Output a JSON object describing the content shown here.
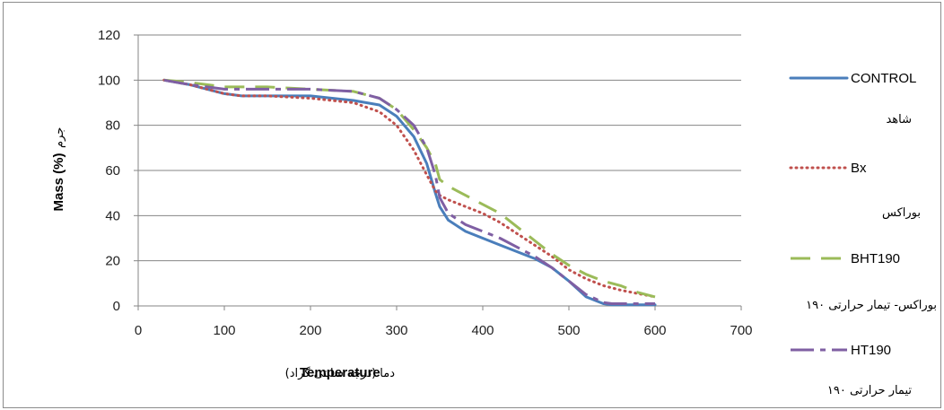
{
  "chart_data": {
    "type": "line",
    "xlabel": "Temperature",
    "xlabel_persian": "دما (درجه سانتی گراد)",
    "ylabel": "Mass (%)",
    "ylabel_persian": "جرم",
    "xlim": [
      0,
      700
    ],
    "ylim": [
      0,
      120
    ],
    "x_ticks": [
      "0",
      "100",
      "200",
      "300",
      "400",
      "500",
      "600",
      "700"
    ],
    "y_ticks": [
      "0",
      "20",
      "40",
      "60",
      "80",
      "100",
      "120"
    ],
    "grid": "horizontal",
    "legend_position": "right",
    "series": [
      {
        "name": "CONTROL",
        "subtitle": "شاهد",
        "color": "#4a7ebb",
        "dash": "solid",
        "x": [
          30,
          60,
          80,
          100,
          120,
          150,
          200,
          250,
          280,
          300,
          320,
          335,
          345,
          350,
          360,
          380,
          400,
          420,
          440,
          460,
          480,
          500,
          520,
          540,
          550,
          600
        ],
        "y": [
          100,
          98,
          96,
          94,
          93,
          93,
          93,
          91,
          89,
          84,
          75,
          63,
          50,
          44,
          38,
          33,
          30,
          27,
          24,
          21,
          17,
          11,
          4,
          1,
          0.5,
          0.5
        ]
      },
      {
        "name": "Bx",
        "subtitle": "بوراکس",
        "color": "#c0504d",
        "dash": "dotted",
        "x": [
          30,
          60,
          80,
          100,
          120,
          150,
          200,
          250,
          280,
          300,
          320,
          335,
          345,
          350,
          360,
          380,
          400,
          420,
          440,
          460,
          480,
          500,
          520,
          540,
          560,
          580,
          600
        ],
        "y": [
          100,
          98,
          96,
          94,
          93,
          93,
          92,
          90,
          86,
          80,
          69,
          58,
          51,
          49,
          47,
          44,
          41,
          37,
          32,
          27,
          22,
          16,
          12,
          9,
          7,
          5.5,
          4
        ]
      },
      {
        "name": "BHT190",
        "subtitle": "بوراکس- تیمار حرارتی ۱۹۰",
        "color": "#9bbb59",
        "dash": "dashed-long",
        "x": [
          30,
          60,
          80,
          100,
          120,
          150,
          200,
          250,
          280,
          300,
          320,
          335,
          345,
          350,
          360,
          380,
          400,
          420,
          440,
          460,
          480,
          500,
          520,
          540,
          560,
          580,
          600
        ],
        "y": [
          100,
          99,
          98,
          97,
          97,
          97,
          96,
          95,
          92,
          87,
          78,
          70,
          63,
          56,
          53,
          49,
          45,
          41,
          35,
          29,
          23,
          18,
          14,
          11,
          9,
          6,
          4
        ]
      },
      {
        "name": "HT190",
        "subtitle": "تیمار حرارتی ۱۹۰",
        "color": "#7f5fa3",
        "dash": "dash-dot-long",
        "x": [
          30,
          60,
          80,
          100,
          120,
          150,
          200,
          250,
          280,
          300,
          320,
          335,
          345,
          350,
          360,
          380,
          400,
          420,
          440,
          460,
          480,
          500,
          520,
          540,
          550,
          600
        ],
        "y": [
          100,
          98,
          97,
          96,
          96,
          96,
          96,
          95,
          92,
          87,
          80,
          70,
          58,
          48,
          41,
          36,
          33,
          30,
          26,
          22,
          17,
          11,
          5,
          1.5,
          1,
          1
        ]
      }
    ]
  }
}
